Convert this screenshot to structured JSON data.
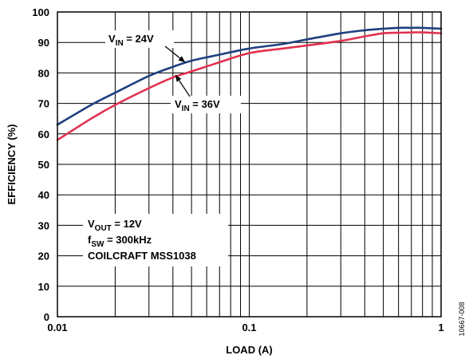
{
  "chart_data": {
    "type": "line",
    "xlabel": "LOAD (A)",
    "ylabel": "EFFICIENCY (%)",
    "xscale": "log",
    "xlim": [
      0.01,
      1
    ],
    "ylim": [
      0,
      100
    ],
    "grid": true,
    "x_tick_labels": [
      "0.01",
      "0.1",
      "1"
    ],
    "y_tick_labels": [
      "0",
      "10",
      "20",
      "30",
      "40",
      "50",
      "60",
      "70",
      "80",
      "90",
      "100"
    ],
    "series": [
      {
        "name": "VIN = 24V",
        "label_main": "V",
        "label_sub": "IN",
        "label_rest": " = 24V",
        "color": "#1f3f7f",
        "x": [
          0.01,
          0.015,
          0.02,
          0.03,
          0.04,
          0.05,
          0.07,
          0.1,
          0.15,
          0.2,
          0.3,
          0.4,
          0.5,
          0.6,
          0.7,
          0.8,
          1.0
        ],
        "y": [
          63,
          69.5,
          73.5,
          79,
          82,
          84,
          86,
          88,
          89.5,
          91,
          93,
          94,
          94.5,
          94.8,
          94.8,
          94.8,
          94.5
        ]
      },
      {
        "name": "VIN = 36V",
        "label_main": "V",
        "label_sub": "IN",
        "label_rest": " = 36V",
        "color": "#e0304f",
        "x": [
          0.01,
          0.015,
          0.02,
          0.03,
          0.04,
          0.05,
          0.07,
          0.1,
          0.15,
          0.2,
          0.3,
          0.4,
          0.5,
          0.6,
          0.7,
          0.8,
          1.0
        ],
        "y": [
          58,
          65,
          69.5,
          75,
          78.5,
          80.5,
          83.5,
          86.5,
          88,
          89,
          90.5,
          92,
          93,
          93.2,
          93.3,
          93.3,
          93
        ]
      }
    ],
    "conditions": [
      {
        "main": "V",
        "sub": "OUT",
        "rest": " = 12V"
      },
      {
        "main": "f",
        "sub": "SW",
        "rest": " = 300kHz"
      },
      {
        "main": "COILCRAFT MSS1038",
        "sub": "",
        "rest": ""
      }
    ],
    "figure_id": "10667-008"
  }
}
